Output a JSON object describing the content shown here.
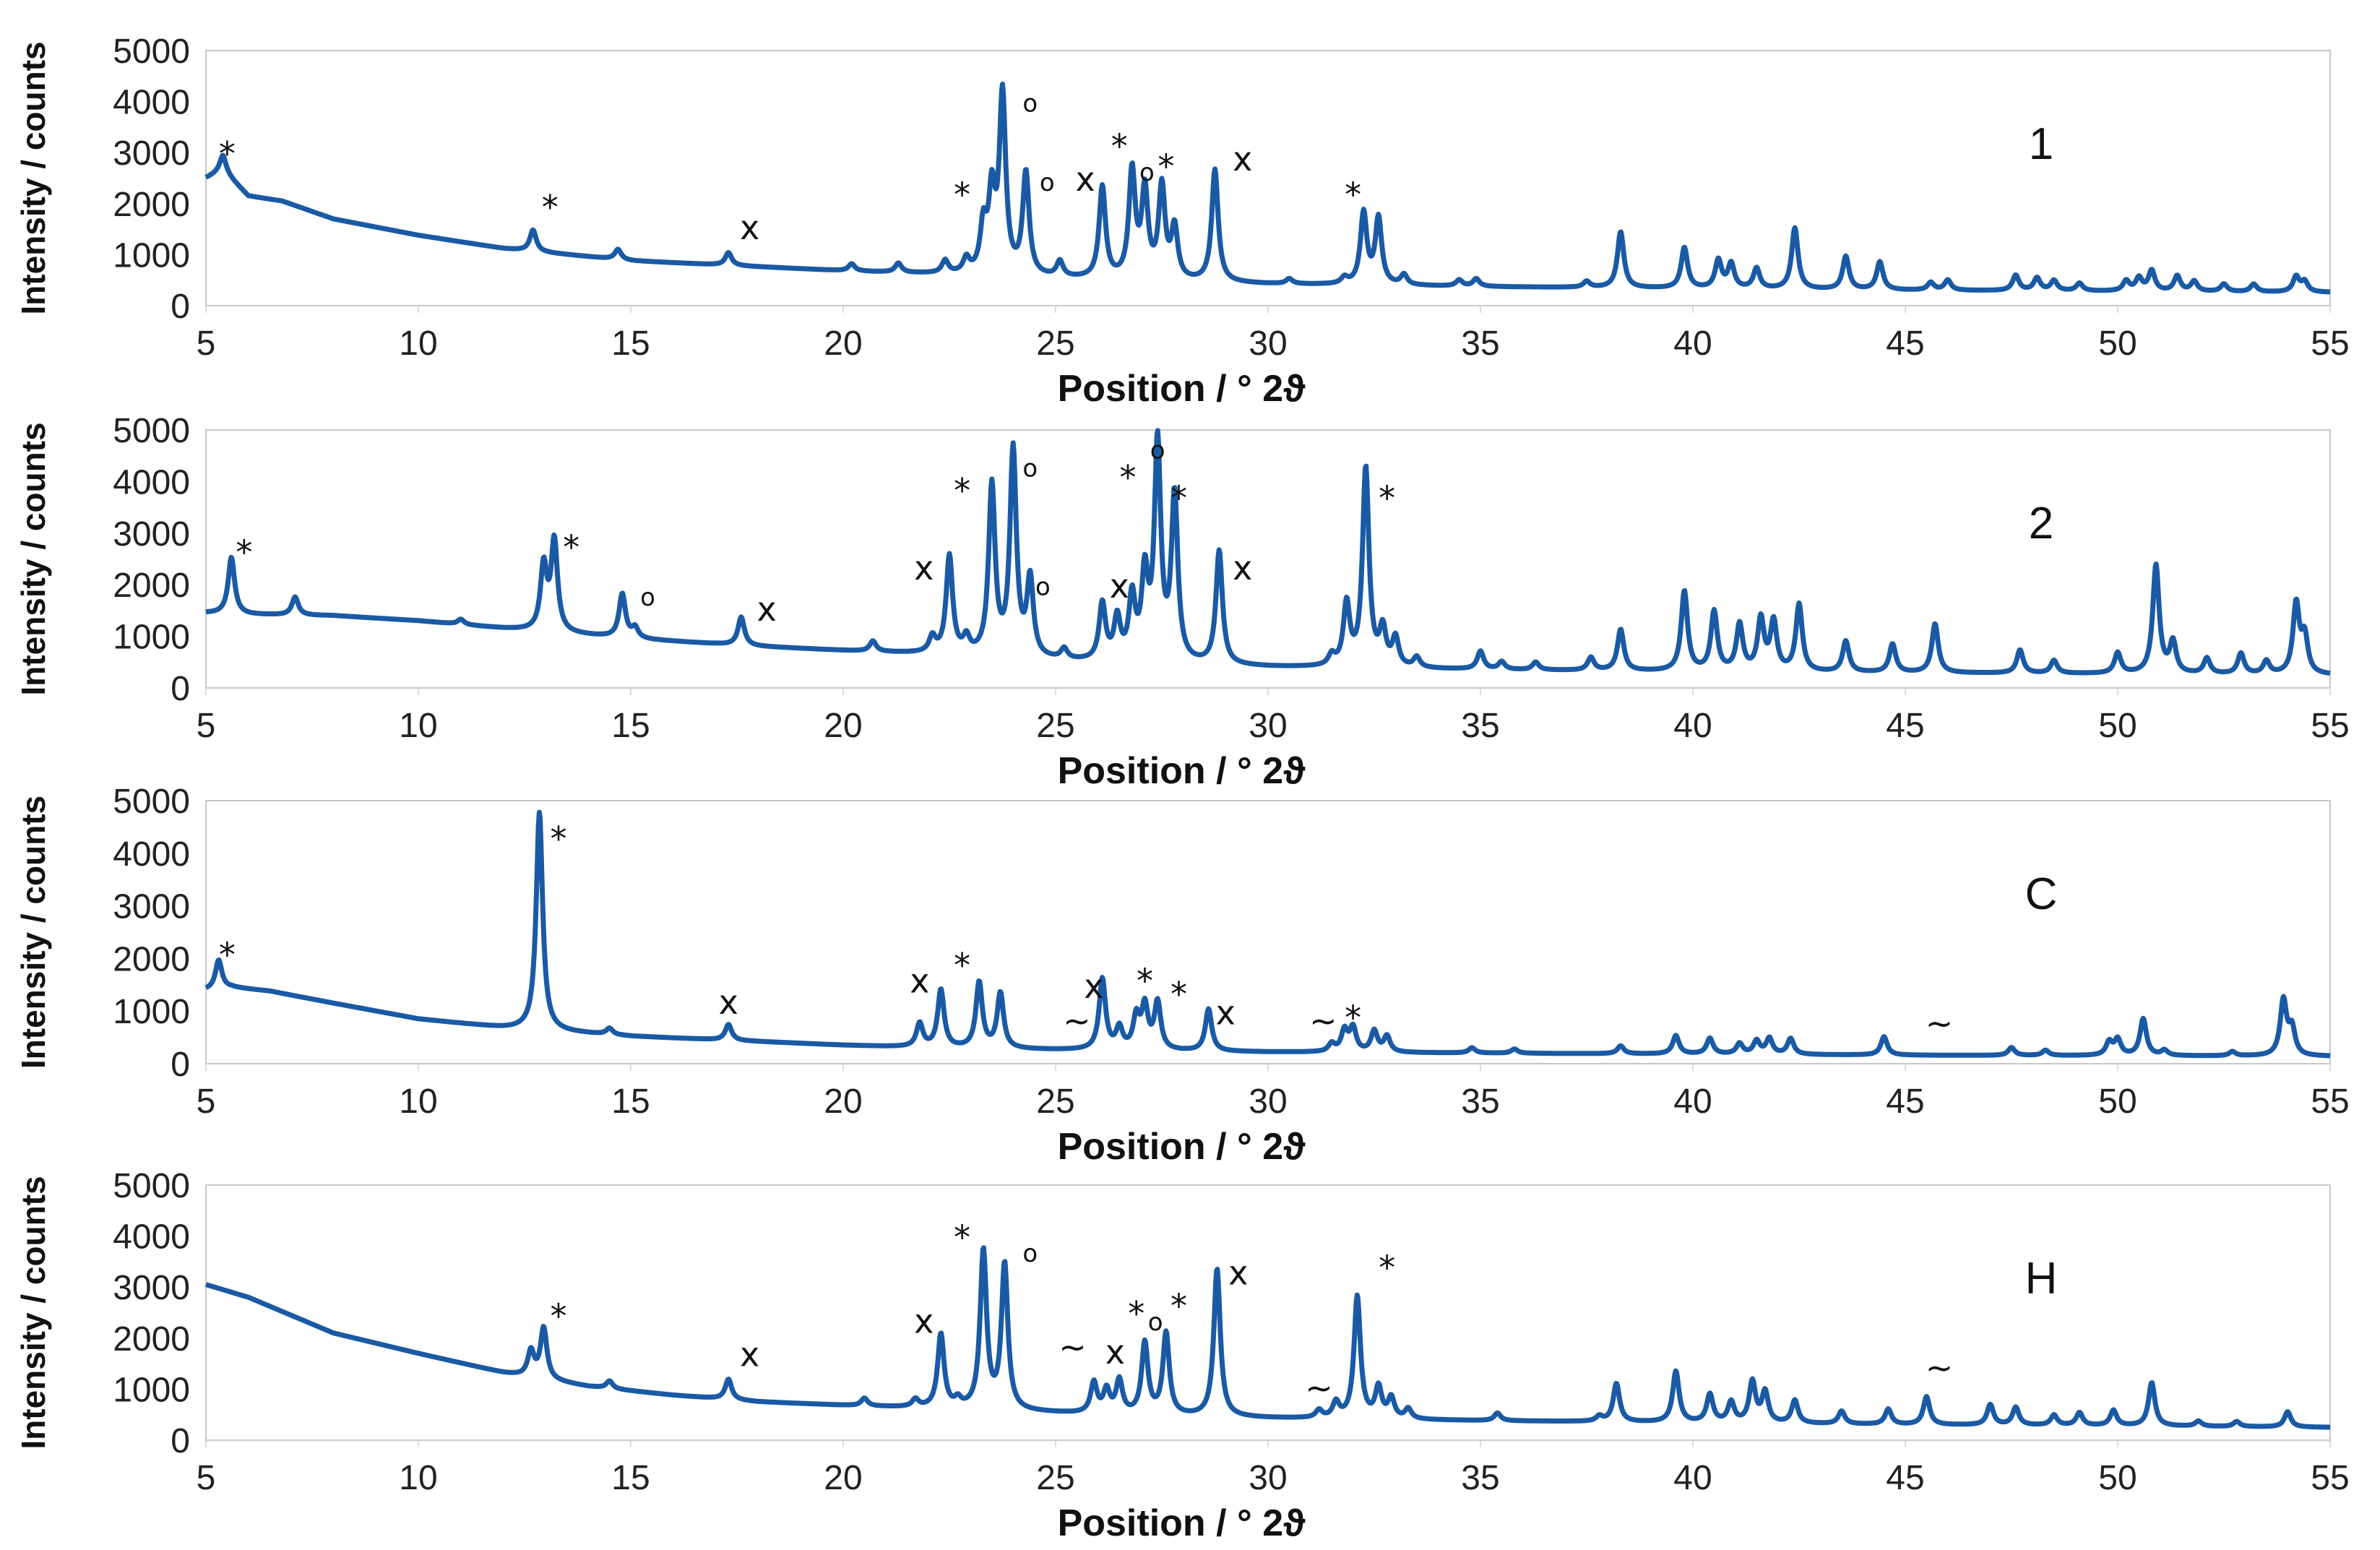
{
  "chart_data": [
    {
      "type": "line",
      "label": "1",
      "xlabel": "Position / ° 2ϑ",
      "ylabel": "Intensity / counts",
      "xlim": [
        5,
        55
      ],
      "ylim": [
        0,
        5000
      ],
      "xticks": [
        "5",
        "10",
        "15",
        "20",
        "25",
        "30",
        "35",
        "40",
        "45",
        "50",
        "55"
      ],
      "yticks": [
        "0",
        "1000",
        "2000",
        "3000",
        "4000",
        "5000"
      ],
      "baseline": [
        [
          5,
          2500
        ],
        [
          5.4,
          2650
        ],
        [
          6,
          2150
        ],
        [
          6.8,
          2050
        ],
        [
          8,
          1700
        ],
        [
          10,
          1380
        ],
        [
          12,
          1120
        ],
        [
          15,
          880
        ],
        [
          18,
          760
        ],
        [
          20,
          680
        ],
        [
          22,
          620
        ],
        [
          24,
          560
        ],
        [
          26,
          500
        ],
        [
          30,
          420
        ],
        [
          35,
          370
        ],
        [
          40,
          330
        ],
        [
          45,
          300
        ],
        [
          50,
          280
        ],
        [
          55,
          260
        ]
      ],
      "peaks": [
        [
          5.4,
          300
        ],
        [
          12.7,
          420
        ],
        [
          14.7,
          200
        ],
        [
          17.3,
          250
        ],
        [
          20.2,
          140
        ],
        [
          21.3,
          180
        ],
        [
          22.4,
          250
        ],
        [
          22.9,
          280
        ],
        [
          23.3,
          900
        ],
        [
          23.5,
          1500
        ],
        [
          23.75,
          3500
        ],
        [
          24.3,
          2000
        ],
        [
          25.1,
          300
        ],
        [
          26.1,
          1800
        ],
        [
          26.8,
          2100
        ],
        [
          27.1,
          1700
        ],
        [
          27.5,
          1800
        ],
        [
          27.8,
          1000
        ],
        [
          28.75,
          2200
        ],
        [
          30.5,
          100
        ],
        [
          31.8,
          120
        ],
        [
          32.25,
          1400
        ],
        [
          32.6,
          1300
        ],
        [
          33.2,
          200
        ],
        [
          34.5,
          120
        ],
        [
          34.9,
          150
        ],
        [
          37.5,
          120
        ],
        [
          38.3,
          1100
        ],
        [
          39.8,
          800
        ],
        [
          40.6,
          550
        ],
        [
          40.9,
          480
        ],
        [
          41.5,
          400
        ],
        [
          42.4,
          1200
        ],
        [
          43.6,
          650
        ],
        [
          44.4,
          550
        ],
        [
          45.6,
          150
        ],
        [
          46,
          200
        ],
        [
          47.6,
          300
        ],
        [
          48.1,
          250
        ],
        [
          48.5,
          200
        ],
        [
          49.1,
          150
        ],
        [
          50.2,
          200
        ],
        [
          50.5,
          250
        ],
        [
          50.8,
          400
        ],
        [
          51.4,
          300
        ],
        [
          51.8,
          200
        ],
        [
          52.5,
          150
        ],
        [
          53.2,
          150
        ],
        [
          54.2,
          300
        ],
        [
          54.4,
          200
        ]
      ],
      "markers": [
        {
          "x": 5.5,
          "y": 2750,
          "text": "*"
        },
        {
          "x": 13.1,
          "y": 1700,
          "text": "*"
        },
        {
          "x": 17.8,
          "y": 1300,
          "text": "x"
        },
        {
          "x": 22.8,
          "y": 1950,
          "text": "*"
        },
        {
          "x": 24.4,
          "y": 3800,
          "text": "o"
        },
        {
          "x": 24.8,
          "y": 2250,
          "text": "o"
        },
        {
          "x": 25.7,
          "y": 2250,
          "text": "x"
        },
        {
          "x": 26.5,
          "y": 2900,
          "text": "*"
        },
        {
          "x": 27.15,
          "y": 2450,
          "text": "o"
        },
        {
          "x": 27.6,
          "y": 2500,
          "text": "*"
        },
        {
          "x": 29.4,
          "y": 2650,
          "text": "x"
        },
        {
          "x": 32.0,
          "y": 1950,
          "text": "*"
        }
      ]
    },
    {
      "type": "line",
      "label": "2",
      "xlabel": "Position / ° 2ϑ",
      "ylabel": "Intensity / counts",
      "xlim": [
        5,
        55
      ],
      "ylim": [
        0,
        5000
      ],
      "xticks": [
        "5",
        "10",
        "15",
        "20",
        "25",
        "30",
        "35",
        "40",
        "45",
        "50",
        "55"
      ],
      "yticks": [
        "0",
        "1000",
        "2000",
        "3000",
        "4000",
        "5000"
      ],
      "baseline": [
        [
          5,
          1450
        ],
        [
          6,
          1420
        ],
        [
          8,
          1400
        ],
        [
          10,
          1300
        ],
        [
          12,
          1150
        ],
        [
          15,
          950
        ],
        [
          18,
          800
        ],
        [
          20,
          720
        ],
        [
          22,
          650
        ],
        [
          24,
          550
        ],
        [
          26,
          480
        ],
        [
          30,
          400
        ],
        [
          35,
          350
        ],
        [
          40,
          310
        ],
        [
          45,
          290
        ],
        [
          50,
          270
        ],
        [
          55,
          250
        ]
      ],
      "peaks": [
        [
          5.6,
          1100
        ],
        [
          7.1,
          350
        ],
        [
          11,
          100
        ],
        [
          12.95,
          1250
        ],
        [
          13.2,
          1750
        ],
        [
          14.8,
          850
        ],
        [
          15.1,
          200
        ],
        [
          17.6,
          550
        ],
        [
          20.7,
          200
        ],
        [
          22.1,
          300
        ],
        [
          22.5,
          1900
        ],
        [
          22.9,
          300
        ],
        [
          23.5,
          3300
        ],
        [
          24.0,
          4000
        ],
        [
          24.4,
          1500
        ],
        [
          25.2,
          200
        ],
        [
          26.1,
          1100
        ],
        [
          26.45,
          800
        ],
        [
          26.8,
          1200
        ],
        [
          27.1,
          1600
        ],
        [
          27.4,
          4200
        ],
        [
          27.8,
          3200
        ],
        [
          28.85,
          2200
        ],
        [
          31.5,
          200
        ],
        [
          31.85,
          1200
        ],
        [
          32.3,
          3850
        ],
        [
          32.7,
          700
        ],
        [
          33,
          550
        ],
        [
          33.5,
          200
        ],
        [
          35,
          350
        ],
        [
          35.5,
          150
        ],
        [
          36.3,
          150
        ],
        [
          37.6,
          250
        ],
        [
          38.3,
          800
        ],
        [
          39.8,
          1550
        ],
        [
          40.5,
          1150
        ],
        [
          41.1,
          900
        ],
        [
          41.6,
          1000
        ],
        [
          41.9,
          950
        ],
        [
          42.5,
          1300
        ],
        [
          43.6,
          600
        ],
        [
          44.7,
          550
        ],
        [
          45.7,
          950
        ],
        [
          47.7,
          450
        ],
        [
          48.5,
          250
        ],
        [
          50.0,
          400
        ],
        [
          50.9,
          2100
        ],
        [
          51.3,
          600
        ],
        [
          52.1,
          300
        ],
        [
          52.9,
          400
        ],
        [
          53.5,
          250
        ],
        [
          54.2,
          1350
        ],
        [
          54.4,
          700
        ]
      ],
      "markers": [
        {
          "x": 5.9,
          "y": 2400,
          "text": "*"
        },
        {
          "x": 13.6,
          "y": 2500,
          "text": "*"
        },
        {
          "x": 15.4,
          "y": 1600,
          "text": "o"
        },
        {
          "x": 18.2,
          "y": 1300,
          "text": "x"
        },
        {
          "x": 21.9,
          "y": 2100,
          "text": "x"
        },
        {
          "x": 22.8,
          "y": 3600,
          "text": "*"
        },
        {
          "x": 24.4,
          "y": 4100,
          "text": "o"
        },
        {
          "x": 24.7,
          "y": 1800,
          "text": "o"
        },
        {
          "x": 26.5,
          "y": 1750,
          "text": "x"
        },
        {
          "x": 26.7,
          "y": 3850,
          "text": "*"
        },
        {
          "x": 27.4,
          "y": 4450,
          "text": "o"
        },
        {
          "x": 27.9,
          "y": 3450,
          "text": "*"
        },
        {
          "x": 29.4,
          "y": 2100,
          "text": "x"
        },
        {
          "x": 32.8,
          "y": 3450,
          "text": "*"
        }
      ]
    },
    {
      "type": "line",
      "label": "C",
      "xlabel": "Position / ° 2ϑ",
      "ylabel": "Intensity / counts",
      "xlim": [
        5,
        55
      ],
      "ylim": [
        0,
        5000
      ],
      "xticks": [
        "5",
        "10",
        "15",
        "20",
        "25",
        "30",
        "35",
        "40",
        "45",
        "50",
        "55"
      ],
      "yticks": [
        "0",
        "1000",
        "2000",
        "3000",
        "4000",
        "5000"
      ],
      "baseline": [
        [
          5,
          1400
        ],
        [
          5.6,
          1450
        ],
        [
          6.5,
          1380
        ],
        [
          8,
          1150
        ],
        [
          10,
          850
        ],
        [
          12,
          680
        ],
        [
          15,
          520
        ],
        [
          18,
          420
        ],
        [
          20,
          350
        ],
        [
          22,
          300
        ],
        [
          25,
          260
        ],
        [
          30,
          220
        ],
        [
          35,
          200
        ],
        [
          40,
          180
        ],
        [
          45,
          160
        ],
        [
          50,
          150
        ],
        [
          55,
          140
        ]
      ],
      "peaks": [
        [
          5.3,
          550
        ],
        [
          12.85,
          4150
        ],
        [
          14.5,
          120
        ],
        [
          17.3,
          300
        ],
        [
          21.8,
          450
        ],
        [
          22.3,
          1100
        ],
        [
          23.2,
          1250
        ],
        [
          23.7,
          1050
        ],
        [
          26.1,
          1350
        ],
        [
          26.5,
          400
        ],
        [
          26.9,
          600
        ],
        [
          27.1,
          800
        ],
        [
          27.4,
          900
        ],
        [
          28.6,
          800
        ],
        [
          31.5,
          150
        ],
        [
          31.8,
          400
        ],
        [
          32.0,
          450
        ],
        [
          32.5,
          400
        ],
        [
          32.8,
          300
        ],
        [
          34.8,
          100
        ],
        [
          35.8,
          80
        ],
        [
          38.3,
          150
        ],
        [
          39.6,
          350
        ],
        [
          40.4,
          300
        ],
        [
          41.1,
          200
        ],
        [
          41.5,
          250
        ],
        [
          41.8,
          300
        ],
        [
          42.3,
          300
        ],
        [
          44.5,
          350
        ],
        [
          47.5,
          150
        ],
        [
          48.3,
          100
        ],
        [
          49.8,
          250
        ],
        [
          50.0,
          300
        ],
        [
          50.6,
          700
        ],
        [
          51.1,
          100
        ],
        [
          52.7,
          80
        ],
        [
          53.9,
          1050
        ],
        [
          54.1,
          500
        ]
      ],
      "markers": [
        {
          "x": 5.5,
          "y": 1850,
          "text": "*"
        },
        {
          "x": 13.3,
          "y": 4050,
          "text": "*"
        },
        {
          "x": 17.3,
          "y": 950,
          "text": "x"
        },
        {
          "x": 21.8,
          "y": 1350,
          "text": "x"
        },
        {
          "x": 22.8,
          "y": 1650,
          "text": "*"
        },
        {
          "x": 25.5,
          "y": 600,
          "text": "~"
        },
        {
          "x": 25.9,
          "y": 1250,
          "text": "x"
        },
        {
          "x": 27.1,
          "y": 1350,
          "text": "*"
        },
        {
          "x": 27.9,
          "y": 1100,
          "text": "*"
        },
        {
          "x": 29.0,
          "y": 750,
          "text": "x"
        },
        {
          "x": 31.3,
          "y": 600,
          "text": "~"
        },
        {
          "x": 32.0,
          "y": 650,
          "text": "*"
        },
        {
          "x": 45.8,
          "y": 550,
          "text": "~"
        }
      ]
    },
    {
      "type": "line",
      "label": "H",
      "xlabel": "Position / ° 2ϑ",
      "ylabel": "Intensity / counts",
      "xlim": [
        5,
        55
      ],
      "ylim": [
        0,
        5000
      ],
      "xticks": [
        "5",
        "10",
        "15",
        "20",
        "25",
        "30",
        "35",
        "40",
        "45",
        "50",
        "55"
      ],
      "yticks": [
        "0",
        "1000",
        "2000",
        "3000",
        "4000",
        "5000"
      ],
      "baseline": [
        [
          5,
          3050
        ],
        [
          6,
          2800
        ],
        [
          7,
          2450
        ],
        [
          8,
          2100
        ],
        [
          10,
          1700
        ],
        [
          12,
          1320
        ],
        [
          14,
          1050
        ],
        [
          16,
          880
        ],
        [
          18,
          750
        ],
        [
          20,
          680
        ],
        [
          22,
          620
        ],
        [
          24,
          560
        ],
        [
          26,
          500
        ],
        [
          30,
          430
        ],
        [
          35,
          380
        ],
        [
          40,
          340
        ],
        [
          45,
          300
        ],
        [
          50,
          280
        ],
        [
          55,
          250
        ]
      ],
      "peaks": [
        [
          12.65,
          500
        ],
        [
          12.95,
          1000
        ],
        [
          14.5,
          150
        ],
        [
          17.3,
          400
        ],
        [
          20.5,
          150
        ],
        [
          21.7,
          150
        ],
        [
          22.3,
          1450
        ],
        [
          22.7,
          150
        ],
        [
          23.3,
          3100
        ],
        [
          23.8,
          2850
        ],
        [
          25.9,
          600
        ],
        [
          26.2,
          450
        ],
        [
          26.5,
          650
        ],
        [
          27.1,
          1400
        ],
        [
          27.6,
          1600
        ],
        [
          28.8,
          2900
        ],
        [
          31.2,
          150
        ],
        [
          31.6,
          300
        ],
        [
          32.1,
          2400
        ],
        [
          32.6,
          600
        ],
        [
          32.9,
          400
        ],
        [
          33.3,
          200
        ],
        [
          35.4,
          150
        ],
        [
          37.8,
          100
        ],
        [
          38.2,
          750
        ],
        [
          39.6,
          1000
        ],
        [
          40.4,
          550
        ],
        [
          40.9,
          400
        ],
        [
          41.4,
          800
        ],
        [
          41.7,
          600
        ],
        [
          42.4,
          450
        ],
        [
          43.5,
          250
        ],
        [
          44.6,
          300
        ],
        [
          45.5,
          550
        ],
        [
          47.0,
          400
        ],
        [
          47.6,
          350
        ],
        [
          48.5,
          200
        ],
        [
          49.1,
          250
        ],
        [
          49.9,
          300
        ],
        [
          50.8,
          850
        ],
        [
          51.9,
          100
        ],
        [
          52.8,
          100
        ],
        [
          54.0,
          300
        ]
      ],
      "markers": [
        {
          "x": 13.3,
          "y": 2200,
          "text": "*"
        },
        {
          "x": 17.8,
          "y": 1450,
          "text": "x"
        },
        {
          "x": 21.9,
          "y": 2100,
          "text": "x"
        },
        {
          "x": 22.8,
          "y": 3750,
          "text": "*"
        },
        {
          "x": 24.4,
          "y": 3500,
          "text": "o"
        },
        {
          "x": 25.4,
          "y": 1600,
          "text": "~"
        },
        {
          "x": 26.4,
          "y": 1500,
          "text": "x"
        },
        {
          "x": 26.9,
          "y": 2250,
          "text": "*"
        },
        {
          "x": 27.35,
          "y": 2150,
          "text": "o"
        },
        {
          "x": 27.9,
          "y": 2400,
          "text": "*"
        },
        {
          "x": 29.3,
          "y": 3050,
          "text": "x"
        },
        {
          "x": 31.2,
          "y": 800,
          "text": "~"
        },
        {
          "x": 32.8,
          "y": 3150,
          "text": "*"
        },
        {
          "x": 45.8,
          "y": 1200,
          "text": "~"
        }
      ]
    }
  ]
}
